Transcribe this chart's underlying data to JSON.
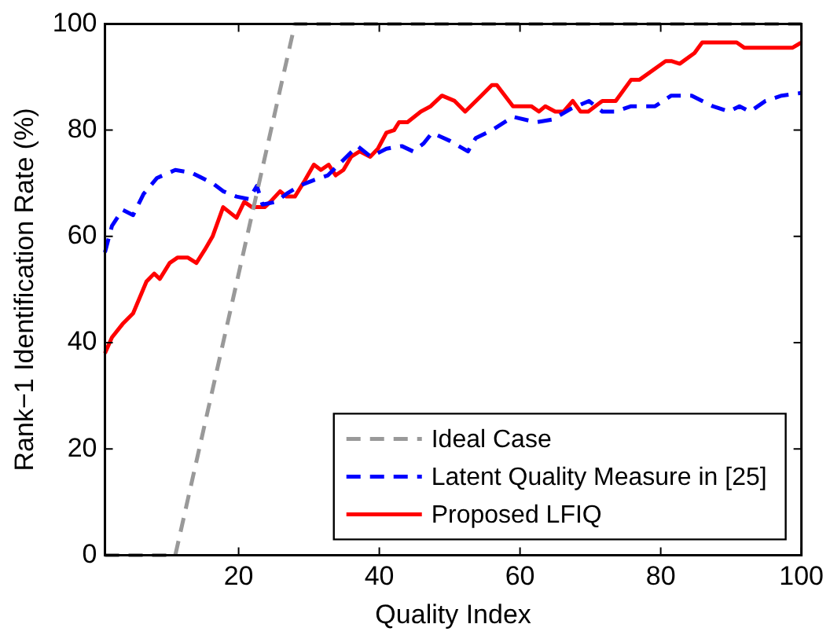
{
  "chart_data": {
    "type": "line",
    "xlabel": "Quality Index",
    "ylabel": "Rank−1 Identification Rate (%)",
    "xlim": [
      1,
      100
    ],
    "xticks": [
      20,
      40,
      60,
      80,
      100
    ],
    "ylim": [
      0,
      100
    ],
    "yticks": [
      0,
      20,
      40,
      60,
      80,
      100
    ],
    "grid": false,
    "legend": "bottom right",
    "marker": "none",
    "series": [
      {
        "name": "Ideal Case",
        "color": "#999999",
        "line_style": "dashed",
        "x": [
          1,
          11,
          28,
          100
        ],
        "values": [
          0,
          0,
          100,
          100
        ]
      },
      {
        "name": "Latent Quality Measure in [25]",
        "color": "#0000ff",
        "line_style": "dashed",
        "x": [
          1,
          2,
          3.5,
          5,
          6.5,
          8.4,
          11,
          13.3,
          16.3,
          17.8,
          19.7,
          21.5,
          22.6,
          23.4,
          25.3,
          26.8,
          28.6,
          30.5,
          32.7,
          34.6,
          36.9,
          38.8,
          41,
          43.2,
          44.8,
          46.3,
          47.5,
          50,
          52.6,
          53.7,
          56,
          59,
          62.3,
          64.6,
          67.2,
          69.8,
          71.7,
          73.6,
          75.8,
          79.2,
          81.5,
          84.4,
          87.4,
          89.7,
          91.2,
          92.7,
          94.9,
          97.2,
          100
        ],
        "values": [
          57,
          62,
          65,
          64,
          68,
          71,
          72.5,
          72,
          70,
          68.5,
          67.5,
          67,
          69.5,
          66,
          66.5,
          68,
          69.5,
          70.5,
          71.5,
          74,
          77,
          75,
          76.5,
          77,
          76,
          77.5,
          79.5,
          78,
          76,
          78.5,
          80,
          82.5,
          81.5,
          82,
          84,
          85.5,
          83.5,
          83.5,
          84.5,
          84.5,
          86.5,
          86.5,
          84.5,
          83.5,
          84.5,
          83.5,
          85.5,
          86.5,
          87
        ]
      },
      {
        "name": "Proposed LFIQ",
        "color": "#ff0000",
        "line_style": "solid",
        "x": [
          1,
          2,
          3.5,
          5,
          6.9,
          8,
          8.8,
          10.2,
          11.3,
          12.8,
          14,
          15.2,
          16.3,
          17.8,
          19.7,
          20.8,
          21.9,
          23.7,
          24.5,
          25.9,
          26.8,
          28,
          29.4,
          30.7,
          31.7,
          32.8,
          33.8,
          34.9,
          36,
          37.2,
          38.7,
          39.8,
          41,
          42.1,
          42.8,
          44,
          45.9,
          47.3,
          48.9,
          50.7,
          52.2,
          54.5,
          56,
          56.7,
          59,
          61.6,
          62.7,
          63.6,
          65,
          66.2,
          67.5,
          68.6,
          69.7,
          71.7,
          73.6,
          75.8,
          77,
          80.7,
          81.5,
          82.7,
          84.8,
          85.9,
          90.8,
          91.9,
          98.7,
          100
        ],
        "values": [
          38,
          41,
          43.5,
          45.5,
          51.5,
          53,
          52,
          55,
          56,
          56,
          55,
          57.5,
          60,
          65.5,
          63.5,
          66.5,
          65.5,
          65.5,
          66.5,
          68.5,
          67.5,
          67.5,
          70.5,
          73.5,
          72.5,
          73.5,
          71.5,
          72.5,
          75,
          76,
          75,
          76.5,
          79.5,
          80,
          81.5,
          81.5,
          83.5,
          84.5,
          86.5,
          85.5,
          83.5,
          86.5,
          88.5,
          88.5,
          84.5,
          84.5,
          83.5,
          84.5,
          83.5,
          83.5,
          85.5,
          83.5,
          83.5,
          85.5,
          85.5,
          89.5,
          89.5,
          93,
          93,
          92.5,
          94.5,
          96.5,
          96.5,
          95.5,
          95.5,
          96.5
        ]
      }
    ]
  }
}
